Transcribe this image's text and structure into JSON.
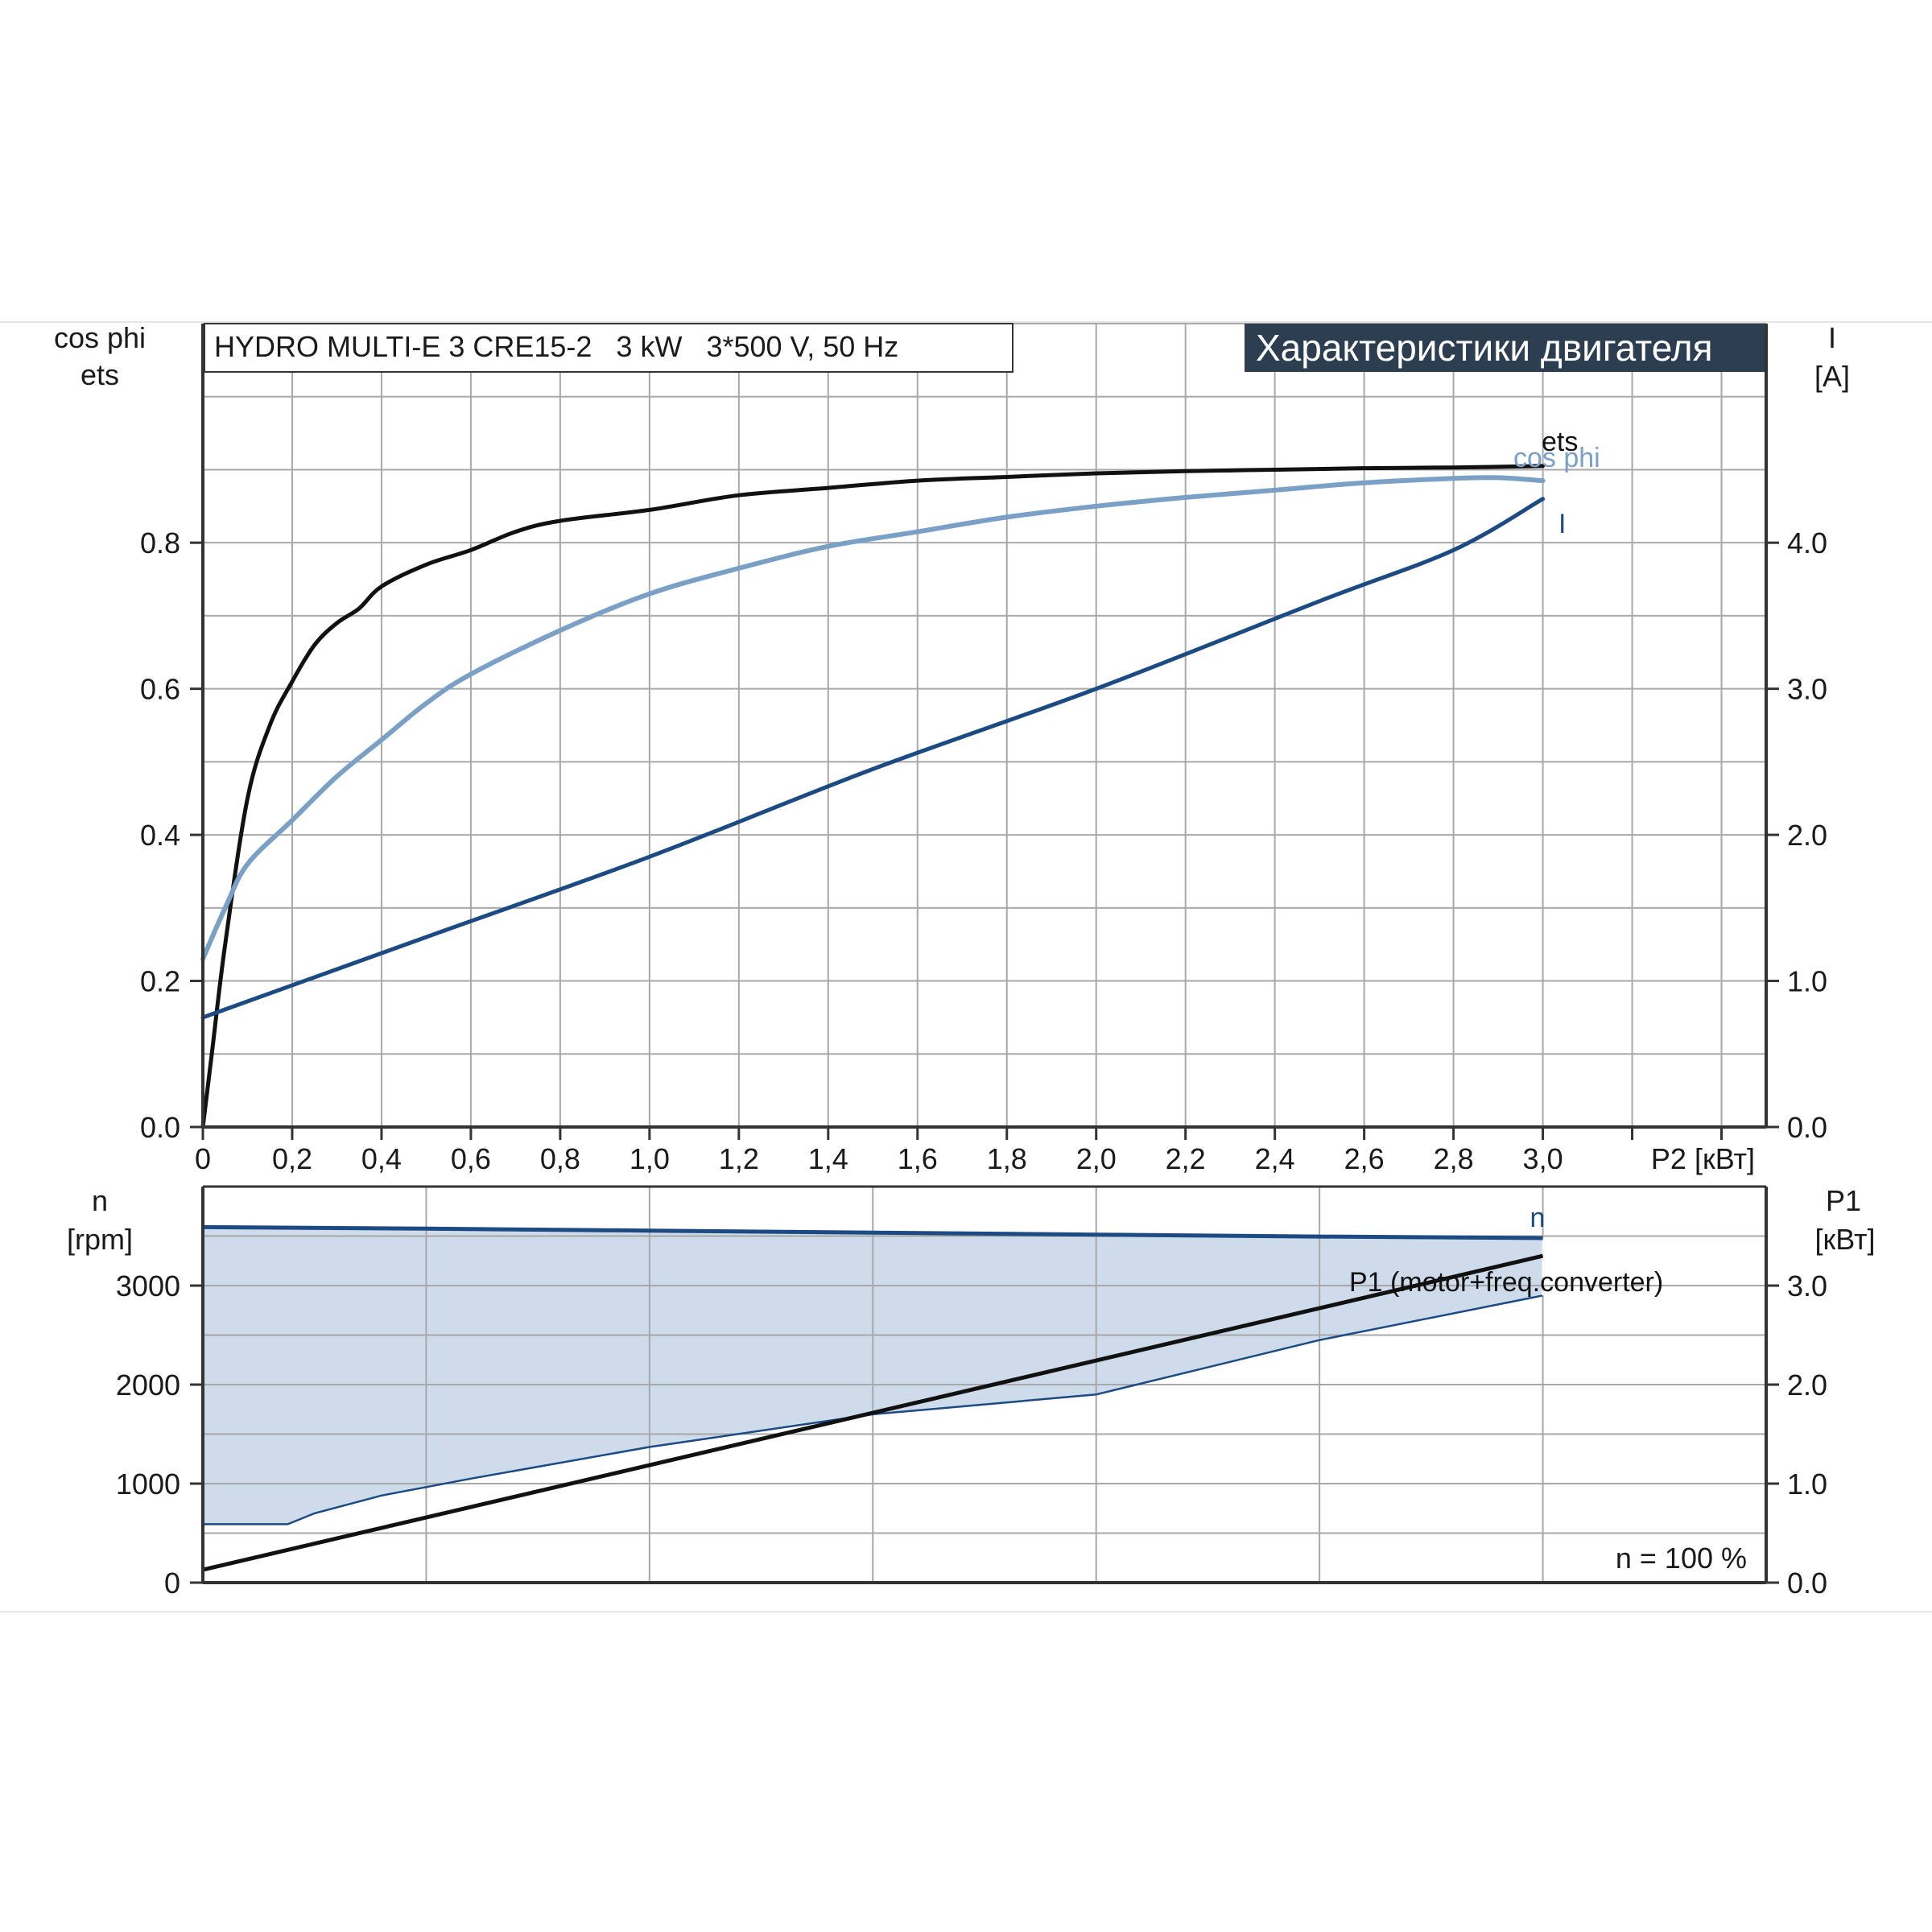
{
  "chart_data": [
    {
      "type": "line",
      "header": "HYDRO MULTI-E 3 CRE15-2   3 kW   3*500 V, 50 Hz",
      "banner": "Характеристики двигателя",
      "left_axis_label_line1": "cos phi",
      "left_axis_label_line2": "ets",
      "right_axis_label_line1": "I",
      "right_axis_label_line2": "[A]",
      "x_label": "P2 [кВт]",
      "x_ticks": [
        "0",
        "0,2",
        "0,4",
        "0,6",
        "0,8",
        "1,0",
        "1,2",
        "1,4",
        "1,6",
        "1,8",
        "2,0",
        "2,2",
        "2,4",
        "2,6",
        "2,8",
        "3,0"
      ],
      "left_ticks": [
        "0.0",
        "0.2",
        "0.4",
        "0.6",
        "0.8"
      ],
      "right_ticks": [
        "0.0",
        "1.0",
        "2.0",
        "3.0",
        "4.0"
      ],
      "xlim": [
        0,
        3.5
      ],
      "ylim_left": [
        0,
        1.1
      ],
      "ylim_right": [
        0,
        5.5
      ],
      "grid": true,
      "series": [
        {
          "name": "ets",
          "axis": "left",
          "color": "#111111",
          "x": [
            0,
            0.02,
            0.05,
            0.1,
            0.15,
            0.2,
            0.25,
            0.3,
            0.35,
            0.4,
            0.5,
            0.6,
            0.7,
            0.8,
            1.0,
            1.2,
            1.4,
            1.6,
            1.8,
            2.0,
            2.2,
            2.4,
            2.6,
            2.8,
            3.0
          ],
          "y": [
            0.0,
            0.1,
            0.25,
            0.45,
            0.55,
            0.61,
            0.66,
            0.69,
            0.71,
            0.74,
            0.77,
            0.79,
            0.815,
            0.83,
            0.845,
            0.865,
            0.875,
            0.885,
            0.89,
            0.895,
            0.898,
            0.9,
            0.902,
            0.903,
            0.905
          ]
        },
        {
          "name": "cos phi",
          "axis": "left",
          "color": "#7aa0c6",
          "x": [
            0,
            0.05,
            0.1,
            0.2,
            0.3,
            0.4,
            0.5,
            0.6,
            0.8,
            1.0,
            1.2,
            1.4,
            1.6,
            1.8,
            2.0,
            2.2,
            2.4,
            2.6,
            2.8,
            2.9,
            3.0
          ],
          "y": [
            0.23,
            0.3,
            0.36,
            0.42,
            0.48,
            0.53,
            0.58,
            0.62,
            0.68,
            0.73,
            0.765,
            0.795,
            0.815,
            0.835,
            0.85,
            0.862,
            0.872,
            0.882,
            0.888,
            0.889,
            0.885
          ]
        },
        {
          "name": "I",
          "axis": "right",
          "color": "#1c4a82",
          "x": [
            0,
            0.5,
            1.0,
            1.5,
            2.0,
            2.5,
            2.8,
            3.0
          ],
          "y": [
            0.75,
            1.3,
            1.85,
            2.45,
            3.0,
            3.6,
            3.95,
            4.3
          ]
        }
      ]
    },
    {
      "type": "area",
      "left_axis_label_line1": "n",
      "left_axis_label_line2": "[rpm]",
      "right_axis_label_line1": "P1",
      "right_axis_label_line2": "[кВт]",
      "left_ticks": [
        "0",
        "1000",
        "2000",
        "3000"
      ],
      "right_ticks": [
        "0.0",
        "1.0",
        "2.0",
        "3.0"
      ],
      "xlim": [
        0,
        3.5
      ],
      "ylim_left": [
        0,
        4000
      ],
      "ylim_right": [
        0,
        4.0
      ],
      "grid": true,
      "note": "n = 100 %",
      "fill_color": "#cddbea",
      "series": [
        {
          "name": "n",
          "axis": "left",
          "color": "#1c4a82",
          "x": [
            0,
            0.5,
            1.0,
            1.5,
            2.0,
            2.5,
            3.0
          ],
          "y": [
            3590,
            3575,
            3555,
            3535,
            3515,
            3495,
            3480
          ]
        },
        {
          "name": "P1 (motor+freq.converter)",
          "axis": "right",
          "color": "#111111",
          "x": [
            0,
            3.0
          ],
          "y": [
            0.13,
            3.3
          ]
        },
        {
          "name": "",
          "axis": "right",
          "color": "#1c4a82",
          "role": "lower-envelope",
          "x": [
            0,
            0.19,
            0.25,
            0.4,
            0.6,
            1.0,
            1.5,
            2.0,
            2.5,
            3.0
          ],
          "y": [
            0.59,
            0.59,
            0.7,
            0.88,
            1.05,
            1.37,
            1.7,
            1.9,
            2.45,
            2.9
          ]
        }
      ]
    }
  ]
}
